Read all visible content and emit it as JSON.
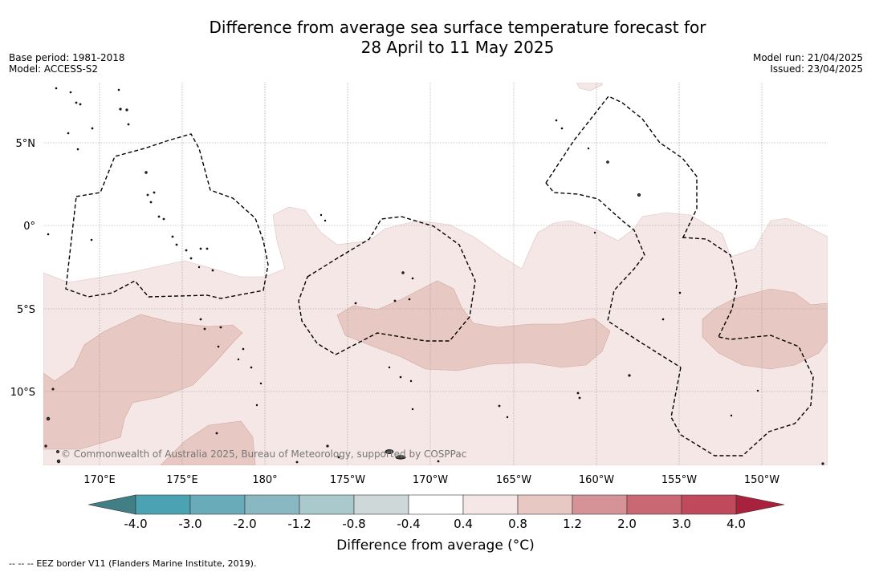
{
  "title": {
    "line1": "Difference from average sea surface temperature forecast for",
    "line2": "28 April to 11 May 2025"
  },
  "meta": {
    "base_period": "Base period: 1981-2018",
    "model": "Model: ACCESS-S2",
    "model_run": "Model run: 21/04/2025",
    "issued": "Issued: 23/04/2025"
  },
  "map": {
    "lat_labels": [
      "5°N",
      "0°",
      "5°S",
      "10°S"
    ],
    "lon_labels": [
      "170°E",
      "175°E",
      "180°",
      "175°W",
      "170°W",
      "165°W",
      "160°W",
      "155°W",
      "150°W"
    ],
    "copyright": "© Commonwealth of Australia 2025, Bureau of Meteorology, supported by COSPPac"
  },
  "colorbar": {
    "title": "Difference from average (°C)",
    "tick_labels": [
      "-4.0",
      "-3.0",
      "-2.0",
      "-1.2",
      "-0.8",
      "-0.4",
      "0.4",
      "0.8",
      "1.2",
      "2.0",
      "3.0",
      "4.0"
    ],
    "colors": {
      "under": "#3f7f85",
      "bins": [
        "#4aa2b3",
        "#6aabb9",
        "#89b8c3",
        "#a9c9cd",
        "#ced8d8",
        "#ffffff",
        "#f5e7e5",
        "#e8c8c2",
        "#d59297",
        "#c96772",
        "#c04a5b"
      ],
      "over": "#a8213d"
    }
  },
  "footer": {
    "legend_symbol": "-- -- --",
    "legend_text": "EEZ border V11 (Flanders Marine Institute, 2019)."
  }
}
